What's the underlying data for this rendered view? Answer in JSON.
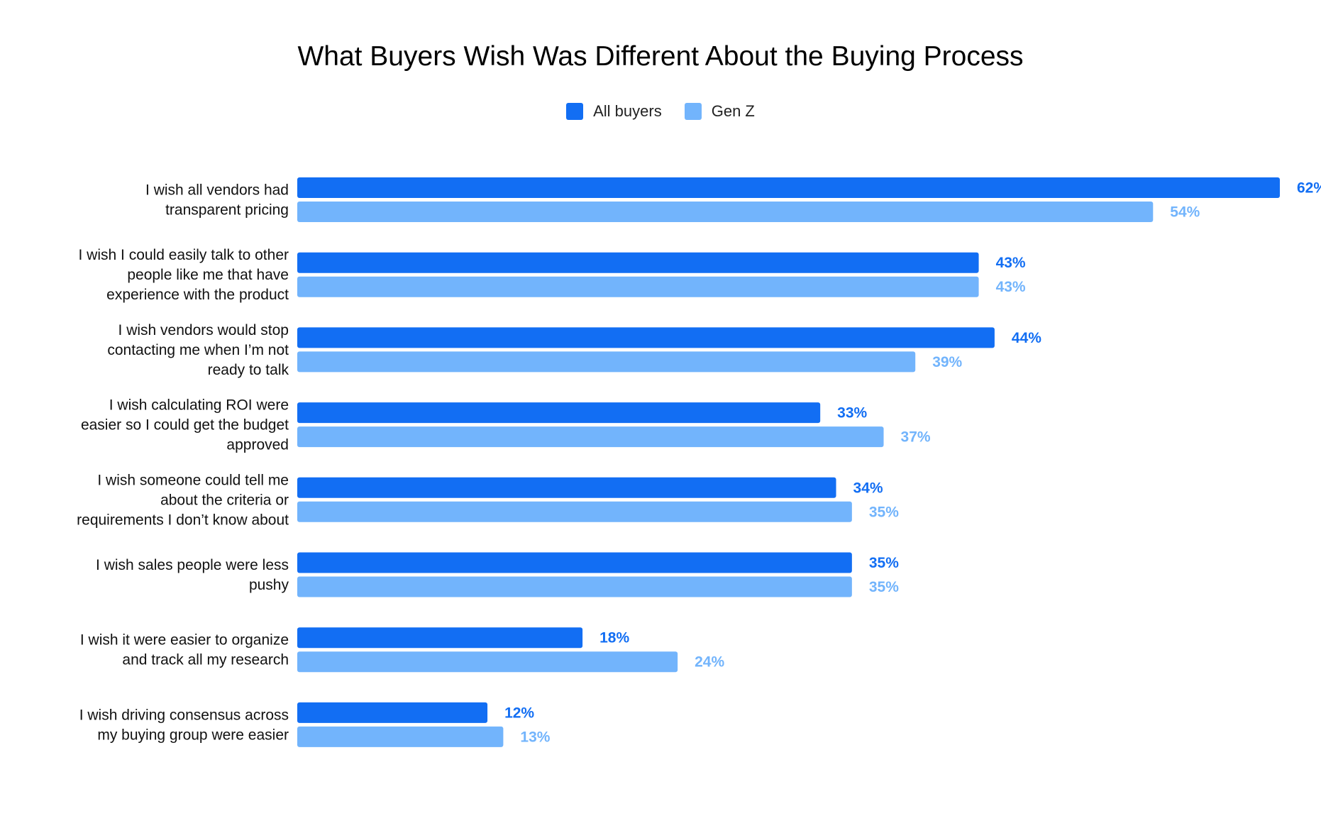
{
  "chart_data": {
    "type": "bar",
    "orientation": "horizontal",
    "title": "What Buyers Wish Was Different About the Buying Process",
    "legend_position": "top",
    "grid": false,
    "xlim": [
      0,
      62
    ],
    "categories": [
      [
        "I wish all vendors had",
        "transparent pricing"
      ],
      [
        "I wish I could easily talk to other",
        "people like me that have",
        "experience with the product"
      ],
      [
        "I wish vendors would stop",
        "contacting me when I’m not",
        "ready to talk"
      ],
      [
        "I wish calculating ROI were",
        "easier so I could get the budget",
        "approved"
      ],
      [
        "I wish someone could tell me",
        "about the criteria or",
        "requirements I don’t know about"
      ],
      [
        "I wish sales people were less",
        "pushy"
      ],
      [
        "I wish it were easier to organize",
        "and track all my research"
      ],
      [
        "I wish driving consensus across",
        "my buying group were easier"
      ]
    ],
    "series": [
      {
        "name": "All buyers",
        "color": "#126ef3",
        "values": [
          62,
          43,
          44,
          33,
          34,
          35,
          18,
          12
        ]
      },
      {
        "name": "Gen Z",
        "color": "#72b4fc",
        "values": [
          54,
          43,
          39,
          37,
          35,
          35,
          24,
          13
        ]
      }
    ],
    "value_suffix": "%"
  }
}
